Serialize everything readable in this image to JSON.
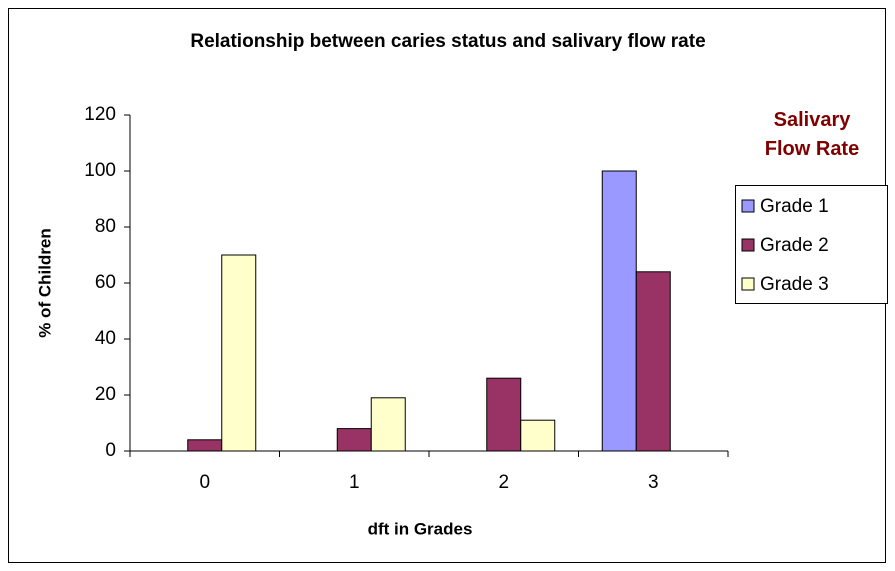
{
  "chart_data": {
    "type": "bar",
    "title": "Relationship between caries status and salivary flow rate",
    "x_label": "dft in Grades",
    "y_label": "% of Children",
    "legend_title": "Salivary Flow Rate",
    "categories": [
      "0",
      "1",
      "2",
      "3"
    ],
    "series": [
      {
        "name": "Grade 1",
        "color": "#9999ff",
        "values": [
          0,
          0,
          0,
          100
        ]
      },
      {
        "name": "Grade 2",
        "color": "#993366",
        "values": [
          4,
          8,
          26,
          64
        ]
      },
      {
        "name": "Grade 3",
        "color": "#ffffcc",
        "values": [
          70,
          19,
          11,
          0
        ]
      }
    ],
    "ylim": [
      0,
      120
    ],
    "yticks": [
      0,
      20,
      40,
      60,
      80,
      100,
      120
    ],
    "legend": "right",
    "grid": false
  }
}
